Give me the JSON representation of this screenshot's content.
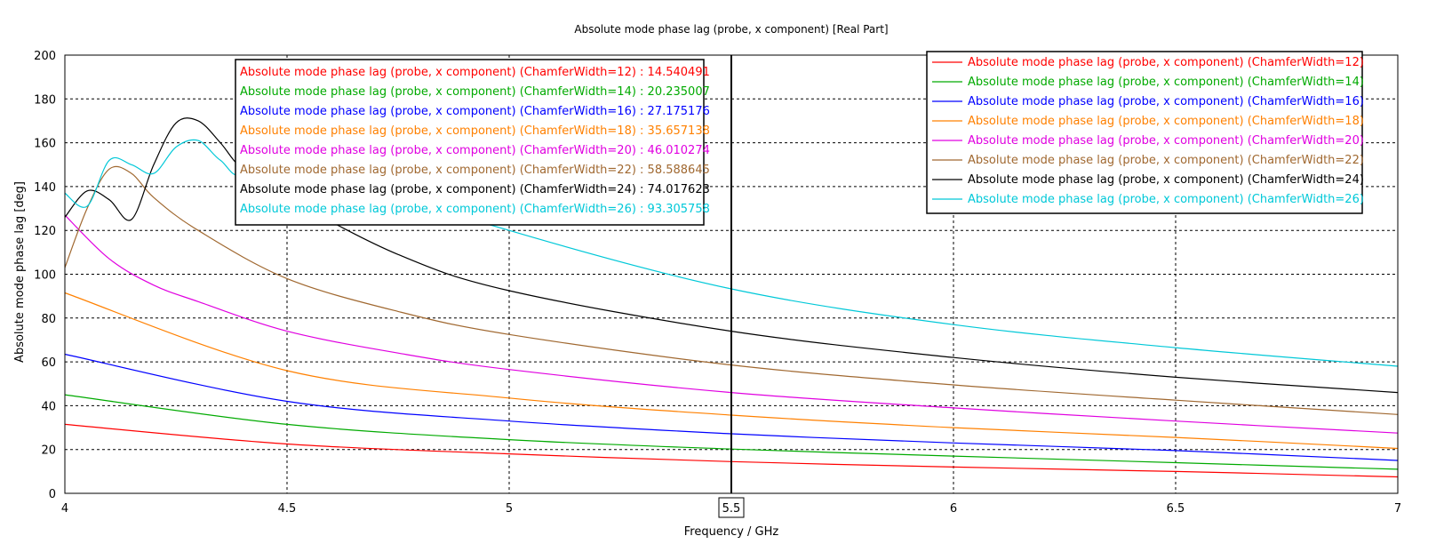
{
  "chart_data": {
    "type": "line",
    "title": "Absolute mode phase lag (probe, x component) [Real Part]",
    "xlabel": "Frequency / GHz",
    "ylabel": "Absolute mode phase lag [deg]",
    "xlim": [
      4,
      7
    ],
    "ylim": [
      0,
      200
    ],
    "xticks": [
      "4",
      "4.5",
      "5",
      "5.5",
      "6",
      "6.5",
      "7"
    ],
    "yticks": [
      "0",
      "20",
      "40",
      "60",
      "80",
      "100",
      "120",
      "140",
      "160",
      "180",
      "200"
    ],
    "grid": true,
    "legend_position": "top-right",
    "marker": {
      "x": 5.5,
      "label": "5.5",
      "readout": [
        {
          "text": "Absolute mode phase lag (probe, x component) (ChamferWidth=12) : 14.540491",
          "color": "#ff0000"
        },
        {
          "text": "Absolute mode phase lag (probe, x component) (ChamferWidth=14) : 20.235007",
          "color": "#00aa00"
        },
        {
          "text": "Absolute mode phase lag (probe, x component) (ChamferWidth=16) : 27.175176",
          "color": "#0000ff"
        },
        {
          "text": "Absolute mode phase lag (probe, x component) (ChamferWidth=18) : 35.657138",
          "color": "#ff8000"
        },
        {
          "text": "Absolute mode phase lag (probe, x component) (ChamferWidth=20) : 46.010274",
          "color": "#e000e0"
        },
        {
          "text": "Absolute mode phase lag (probe, x component) (ChamferWidth=22) : 58.588645",
          "color": "#a06830"
        },
        {
          "text": "Absolute mode phase lag (probe, x component) (ChamferWidth=24) : 74.017623",
          "color": "#000000"
        },
        {
          "text": "Absolute mode phase lag (probe, x component) (ChamferWidth=26) : 93.305758",
          "color": "#00c8d8"
        }
      ]
    },
    "series": [
      {
        "name": "Absolute mode phase lag (probe, x component) (ChamferWidth=12)",
        "color": "#ff0000",
        "x": [
          4,
          4.5,
          5,
          5.5,
          6,
          6.5,
          7
        ],
        "y": [
          31.5,
          22.5,
          18,
          14.5,
          12,
          10,
          7.5
        ]
      },
      {
        "name": "Absolute mode phase lag (probe, x component) (ChamferWidth=14)",
        "color": "#00aa00",
        "x": [
          4,
          4.5,
          5,
          5.5,
          6,
          6.5,
          7
        ],
        "y": [
          45,
          31.5,
          24.5,
          20.2,
          17,
          14,
          11
        ]
      },
      {
        "name": "Absolute mode phase lag (probe, x component) (ChamferWidth=16)",
        "color": "#0000ff",
        "x": [
          4,
          4.5,
          5,
          5.5,
          6,
          6.5,
          7
        ],
        "y": [
          63.5,
          42,
          33,
          27.2,
          23,
          19.5,
          15
        ]
      },
      {
        "name": "Absolute mode phase lag (probe, x component) (ChamferWidth=18)",
        "color": "#ff8000",
        "x": [
          4,
          4.5,
          5,
          5.5,
          6,
          6.5,
          7
        ],
        "y": [
          91.5,
          56,
          43.5,
          35.7,
          30,
          25.5,
          20.5
        ]
      },
      {
        "name": "Absolute mode phase lag (probe, x component) (ChamferWidth=20)",
        "color": "#e000e0",
        "x": [
          4,
          4.1,
          4.2,
          4.3,
          4.5,
          4.75,
          5,
          5.5,
          6,
          6.5,
          7
        ],
        "y": [
          127,
          107,
          95,
          87.5,
          74,
          64,
          56.5,
          46,
          39,
          33,
          27.5
        ]
      },
      {
        "name": "Absolute mode phase lag (probe, x component) (ChamferWidth=22)",
        "color": "#a06830",
        "x": [
          4,
          4.05,
          4.1,
          4.15,
          4.2,
          4.3,
          4.5,
          4.75,
          5,
          5.5,
          6,
          6.5,
          7
        ],
        "y": [
          103,
          130,
          148,
          146,
          135,
          120,
          98,
          83,
          72.5,
          58.6,
          49.5,
          42.5,
          36
        ]
      },
      {
        "name": "Absolute mode phase lag (probe, x component) (ChamferWidth=24)",
        "color": "#000000",
        "x": [
          4,
          4.05,
          4.1,
          4.15,
          4.2,
          4.25,
          4.3,
          4.35,
          4.4,
          4.5,
          4.75,
          5,
          5.5,
          6,
          6.5,
          7
        ],
        "y": [
          126,
          138,
          134,
          125,
          150,
          169,
          170,
          160,
          148,
          135,
          109,
          92.5,
          74,
          62,
          53,
          46
        ]
      },
      {
        "name": "Absolute mode phase lag (probe, x component) (ChamferWidth=26)",
        "color": "#00c8d8",
        "x": [
          4,
          4.05,
          4.1,
          4.15,
          4.2,
          4.25,
          4.3,
          4.35,
          4.4,
          4.45,
          4.5,
          4.75,
          5,
          5.5,
          6,
          6.5,
          7
        ],
        "y": [
          137,
          131,
          152,
          150,
          146,
          158,
          161,
          152,
          148,
          195,
          178,
          138,
          120,
          93.3,
          77,
          66.5,
          58
        ]
      }
    ]
  }
}
